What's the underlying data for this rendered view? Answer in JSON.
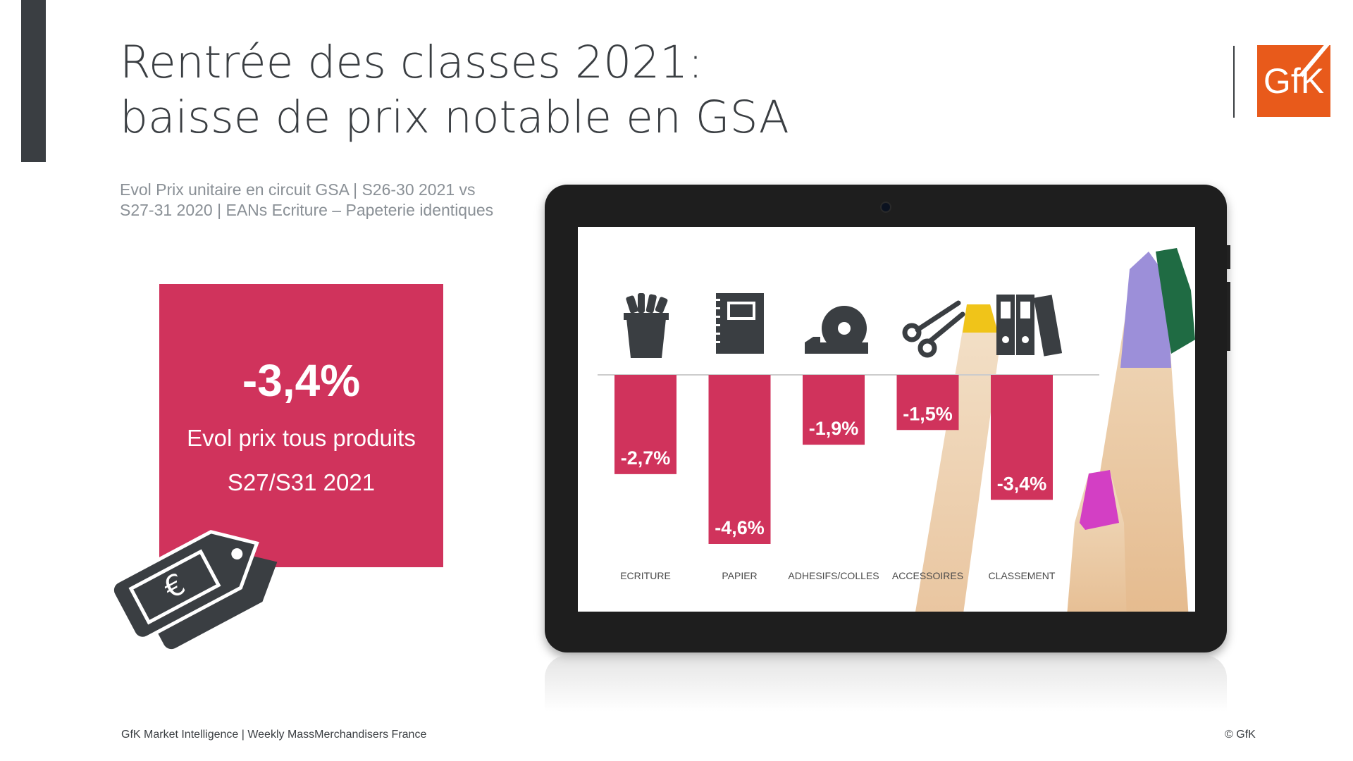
{
  "slide": {
    "title_line1": "Rentrée des classes 2021:",
    "title_line2": "baisse de prix notable en GSA",
    "subtitle_line1": "Evol Prix unitaire en circuit GSA | S26-30 2021 vs",
    "subtitle_line2": "S27-31 2020 | EANs Ecriture – Papeterie identiques",
    "logo_text": "GfK",
    "footer_left": "GfK Market Intelligence | Weekly MassMerchandisers France",
    "footer_right": "© GfK"
  },
  "kpi": {
    "value": "-3,4%",
    "label": "Evol prix tous produits",
    "period": "S27/S31 2021",
    "icon": "euro-price-tag-icon"
  },
  "colors": {
    "accent": "#d0335c",
    "dark": "#3a3e42",
    "brand": "#e85a1b",
    "subtitle": "#8a9096"
  },
  "chart_data": {
    "type": "bar",
    "categories": [
      "ECRITURE",
      "PAPIER",
      "ADHESIFS/COLLES",
      "ACCESSOIRES",
      "CLASSEMENT"
    ],
    "values": [
      -2.7,
      -4.6,
      -1.9,
      -1.5,
      -3.4
    ],
    "data_labels": [
      "-2,7%",
      "-4,6%",
      "-1,9%",
      "-1,5%",
      "-3,4%"
    ],
    "icons": [
      "pencil-cup-icon",
      "notebook-icon",
      "tape-dispenser-icon",
      "scissors-icon",
      "binders-icon"
    ],
    "ylim": [
      -4.6,
      0
    ],
    "color": "#d0335c"
  }
}
